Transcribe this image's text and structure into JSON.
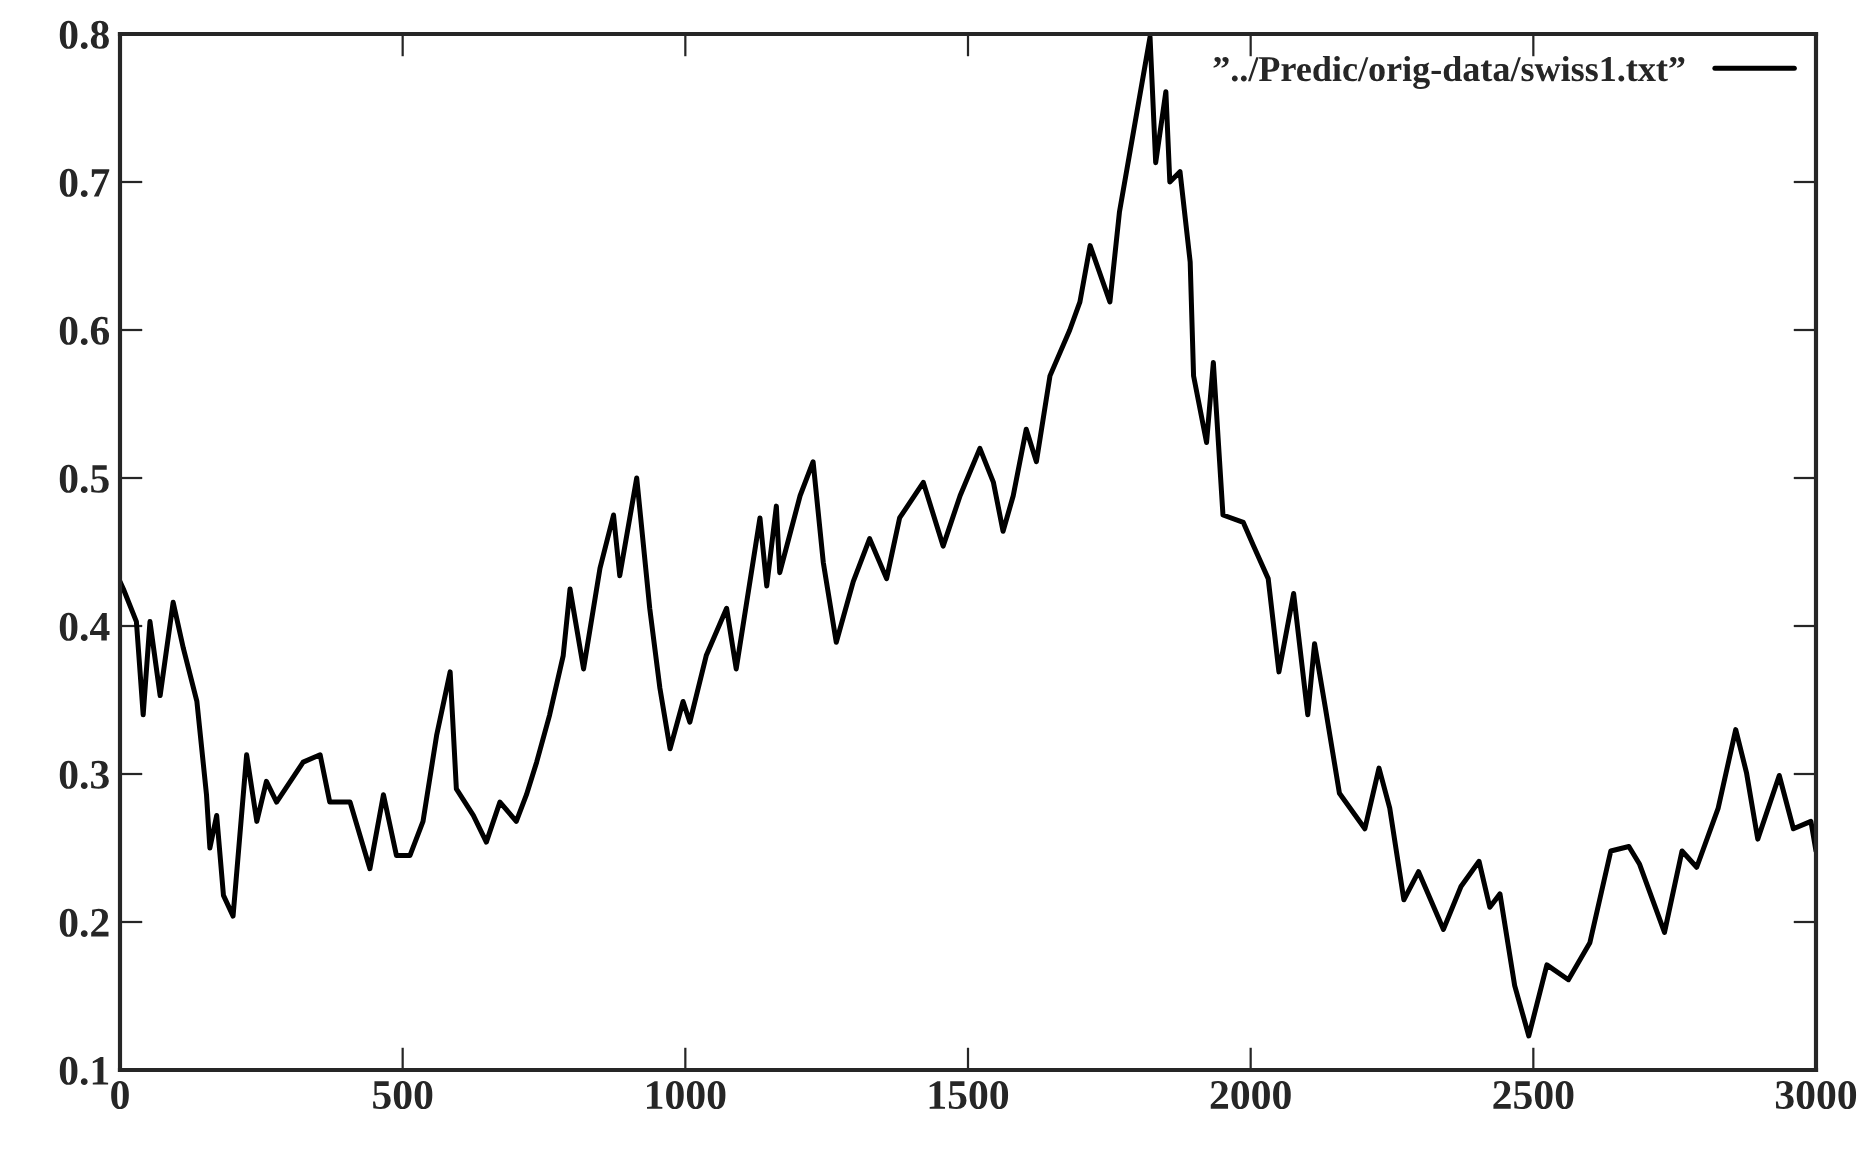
{
  "chart_data": {
    "type": "line",
    "xlim": [
      0,
      3000
    ],
    "ylim": [
      0.1,
      0.8
    ],
    "xticks": [
      0,
      500,
      1000,
      1500,
      2000,
      2500,
      3000
    ],
    "yticks": [
      0.1,
      0.2,
      0.3,
      0.4,
      0.5,
      0.6,
      0.7,
      0.8
    ],
    "grid": false,
    "legend": "top right",
    "marker": "none",
    "line_style": "solid",
    "series": [
      {
        "name": "”../Predic/orig-data/swiss1.txt”",
        "color": "#000000",
        "x": [
          0,
          6,
          29,
          41,
          53,
          71,
          94,
          112,
          136,
          153,
          159,
          171,
          183,
          200,
          224,
          242,
          259,
          277,
          324,
          354,
          371,
          407,
          442,
          466,
          489,
          513,
          536,
          560,
          584,
          595,
          625,
          648,
          672,
          701,
          719,
          737,
          760,
          784,
          796,
          820,
          849,
          873,
          884,
          914,
          937,
          955,
          973,
          996,
          1008,
          1037,
          1073,
          1090,
          1132,
          1144,
          1161,
          1167,
          1203,
          1226,
          1244,
          1267,
          1297,
          1326,
          1356,
          1379,
          1421,
          1456,
          1486,
          1521,
          1545,
          1562,
          1580,
          1603,
          1621,
          1645,
          1680,
          1698,
          1716,
          1751,
          1768,
          1822,
          1832,
          1850,
          1857,
          1875,
          1893,
          1899,
          1922,
          1934,
          1951,
          1987,
          2004,
          2031,
          2050,
          2076,
          2101,
          2113,
          2132,
          2157,
          2202,
          2227,
          2246,
          2271,
          2297,
          2341,
          2372,
          2404,
          2423,
          2441,
          2467,
          2492,
          2524,
          2562,
          2600,
          2637,
          2669,
          2688,
          2732,
          2763,
          2789,
          2827,
          2858,
          2877,
          2897,
          2935,
          2960,
          2991,
          3000
        ],
        "values": [
          0.43,
          0.425,
          0.403,
          0.34,
          0.403,
          0.353,
          0.416,
          0.385,
          0.349,
          0.286,
          0.25,
          0.272,
          0.218,
          0.204,
          0.313,
          0.268,
          0.295,
          0.281,
          0.308,
          0.313,
          0.281,
          0.281,
          0.236,
          0.286,
          0.245,
          0.245,
          0.268,
          0.326,
          0.369,
          0.29,
          0.272,
          0.254,
          0.281,
          0.268,
          0.286,
          0.308,
          0.34,
          0.38,
          0.425,
          0.371,
          0.439,
          0.475,
          0.434,
          0.5,
          0.412,
          0.358,
          0.317,
          0.349,
          0.335,
          0.38,
          0.412,
          0.371,
          0.473,
          0.427,
          0.481,
          0.436,
          0.488,
          0.511,
          0.443,
          0.389,
          0.43,
          0.459,
          0.432,
          0.473,
          0.497,
          0.454,
          0.488,
          0.52,
          0.497,
          0.464,
          0.488,
          0.533,
          0.511,
          0.569,
          0.6,
          0.619,
          0.657,
          0.619,
          0.68,
          0.798,
          0.713,
          0.761,
          0.7,
          0.707,
          0.646,
          0.569,
          0.524,
          0.578,
          0.475,
          0.47,
          0.455,
          0.432,
          0.369,
          0.422,
          0.34,
          0.388,
          0.345,
          0.287,
          0.263,
          0.304,
          0.277,
          0.215,
          0.234,
          0.195,
          0.224,
          0.241,
          0.21,
          0.219,
          0.157,
          0.123,
          0.171,
          0.161,
          0.186,
          0.248,
          0.251,
          0.239,
          0.193,
          0.248,
          0.237,
          0.277,
          0.33,
          0.301,
          0.256,
          0.299,
          0.263,
          0.268,
          0.248
        ]
      }
    ]
  }
}
